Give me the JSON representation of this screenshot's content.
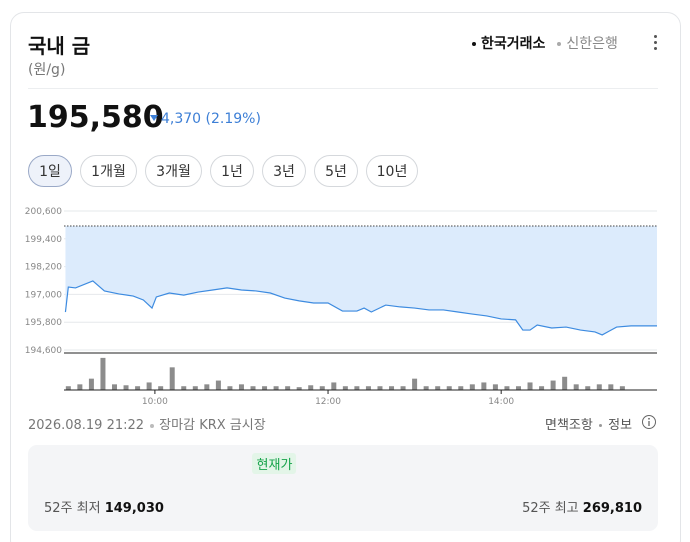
{
  "header": {
    "title": "국내 금",
    "unit": "(원/g)",
    "sources": [
      "한국거래소",
      "신한은행"
    ],
    "active_source": 0,
    "price": {
      "value": 195580,
      "label": "195,580"
    },
    "change": "4,370",
    "change_pct": "(2.19%)"
  },
  "periods": [
    "1일",
    "1개월",
    "3개월",
    "1년",
    "3년",
    "5년",
    "10년"
  ],
  "active_period": 0,
  "chart_data": {
    "type": "line",
    "x": [
      "08:58",
      "09:00",
      "09:05",
      "09:17",
      "09:25",
      "09:35",
      "09:45",
      "09:52",
      "09:58",
      "10:01",
      "10:10",
      "10:20",
      "10:30",
      "10:40",
      "10:50",
      "11:00",
      "11:10",
      "11:20",
      "11:30",
      "11:40",
      "11:50",
      "12:00",
      "12:10",
      "12:20",
      "12:25",
      "12:30",
      "12:40",
      "12:50",
      "13:00",
      "13:10",
      "13:20",
      "13:30",
      "13:40",
      "13:50",
      "14:00",
      "14:10",
      "14:15",
      "14:20",
      "14:25",
      "14:35",
      "14:45",
      "14:55",
      "15:05",
      "15:10",
      "15:15",
      "15:20",
      "15:30",
      "15:48"
    ],
    "series": [
      {
        "color": "#3d8be0",
        "fill": "#dcebfc",
        "values": [
          196240,
          197320,
          197280,
          197580,
          197150,
          197020,
          196930,
          196760,
          196410,
          196890,
          197060,
          196970,
          197100,
          197190,
          197280,
          197190,
          197150,
          197060,
          196840,
          196720,
          196630,
          196630,
          196280,
          196280,
          196410,
          196240,
          196540,
          196460,
          196410,
          196330,
          196330,
          196240,
          196150,
          196070,
          195940,
          195900,
          195460,
          195460,
          195680,
          195550,
          195590,
          195460,
          195380,
          195250,
          195420,
          195590,
          195640,
          195640
        ]
      }
    ],
    "reference_line": 199950,
    "xlim": [
      "08:57",
      "15:48"
    ],
    "xticks": [
      "10:00",
      "12:00",
      "14:00"
    ],
    "ylim": [
      194600,
      200600
    ],
    "yticks": [
      {
        "value": 200600,
        "label": "200,600"
      },
      {
        "value": 199400,
        "label": "199,400"
      },
      {
        "value": 198200,
        "label": "198,200"
      },
      {
        "value": 197000,
        "label": "197,000"
      },
      {
        "value": 195800,
        "label": "195,800"
      },
      {
        "value": 194600,
        "label": "194,600"
      }
    ],
    "grid": true,
    "volume": {
      "color": "#8c8c8c",
      "ylim": [
        0,
        36
      ],
      "x": [
        "09:00",
        "09:08",
        "09:16",
        "09:24",
        "09:32",
        "09:40",
        "09:48",
        "09:56",
        "10:04",
        "10:12",
        "10:20",
        "10:28",
        "10:36",
        "10:44",
        "10:52",
        "11:00",
        "11:08",
        "11:16",
        "11:24",
        "11:32",
        "11:40",
        "11:48",
        "11:56",
        "12:04",
        "12:12",
        "12:20",
        "12:28",
        "12:36",
        "12:44",
        "12:52",
        "13:00",
        "13:08",
        "13:16",
        "13:24",
        "13:32",
        "13:40",
        "13:48",
        "13:56",
        "14:04",
        "14:12",
        "14:20",
        "14:28",
        "14:36",
        "14:44",
        "14:52",
        "15:00",
        "15:08",
        "15:16",
        "15:24"
      ],
      "values": [
        4,
        6,
        12,
        34,
        6,
        5,
        4,
        8,
        4,
        24,
        4,
        4,
        6,
        10,
        4,
        6,
        4,
        4,
        4,
        4,
        3,
        5,
        4,
        8,
        4,
        4,
        4,
        4,
        4,
        4,
        12,
        4,
        4,
        4,
        4,
        6,
        8,
        6,
        4,
        4,
        8,
        4,
        10,
        14,
        6,
        4,
        6,
        6,
        4
      ]
    }
  },
  "footer": {
    "timestamp": "2026.08.19 21:22",
    "status": "장마감",
    "market": "KRX 금시장",
    "disclaimer": "면책조항",
    "info": "정보"
  },
  "range": {
    "current_label": "현재가",
    "low_label": "52주 최저",
    "low": {
      "value": 149030,
      "label": "149,030"
    },
    "high_label": "52주 최고",
    "high": {
      "value": 269810,
      "label": "269,810"
    }
  }
}
